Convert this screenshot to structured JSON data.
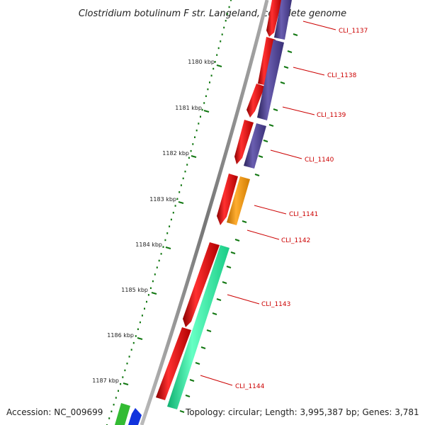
{
  "title": "Clostridium botulinum F str. Langeland, complete genome",
  "footer": {
    "accession": "Accession: NC_009699",
    "summary": "Topology: circular; Length: 3,995,387 bp; Genes: 3,781"
  },
  "ruler": {
    "ticks": [
      "1180 kbp",
      "1181 kbp",
      "1182 kbp",
      "1183 kbp",
      "1184 kbp",
      "1185 kbp",
      "1186 kbp",
      "1187 kbp"
    ]
  },
  "genes": [
    {
      "label": "CLI_1137"
    },
    {
      "label": "CLI_1138"
    },
    {
      "label": "CLI_1139"
    },
    {
      "label": "CLI_1140"
    },
    {
      "label": "CLI_1141"
    },
    {
      "label": "CLI_1142"
    },
    {
      "label": "CLI_1143"
    },
    {
      "label": "CLI_1144"
    }
  ],
  "colors": {
    "cds": "#ee0000",
    "purple": "#4e428e",
    "orange": "#f59400",
    "teal": "#22f0a0",
    "green": "#33bb33",
    "blue": "#1133dd",
    "ruler_dots": "#117711",
    "backbone": "#888888",
    "label": "#cc0000"
  }
}
